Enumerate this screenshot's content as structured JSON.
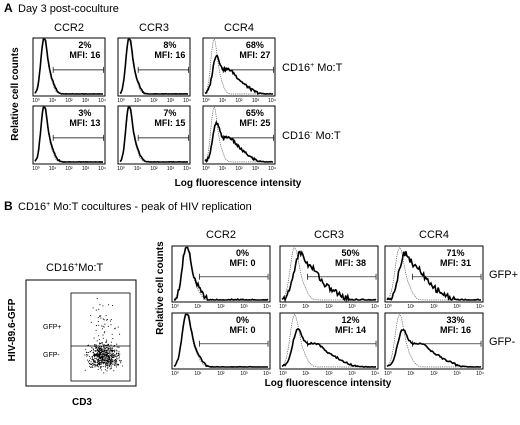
{
  "figure": {
    "panels": [
      {
        "id": "A",
        "letter": "A",
        "title": "Day 3 post-coculture",
        "ylabel": "Relative cell counts",
        "xlabel": "Log fluorescence intensity",
        "columns": [
          "CCR2",
          "CCR3",
          "CCR4"
        ],
        "row_labels": [
          {
            "main": "CD16",
            "sup": "+",
            "rest": " Mo:T"
          },
          {
            "main": "CD16",
            "sup": "-",
            "rest": " Mo:T"
          }
        ],
        "stats": [
          [
            {
              "pct": "2%",
              "mfi": "MFI: 16"
            },
            {
              "pct": "8%",
              "mfi": "MFI: 16"
            },
            {
              "pct": "68%",
              "mfi": "MFI: 27"
            }
          ],
          [
            {
              "pct": "3%",
              "mfi": "MFI: 13"
            },
            {
              "pct": "7%",
              "mfi": "MFI: 15"
            },
            {
              "pct": "65%",
              "mfi": "MFI: 25"
            }
          ]
        ]
      },
      {
        "id": "B",
        "letter": "B",
        "title": {
          "main": "CD16",
          "sup": "+",
          "rest": " Mo:T cocultures - peak of HIV replication"
        },
        "ylabel": "Relative cell counts",
        "xlabel": "Log fluorescence intensity",
        "columns": [
          "CCR2",
          "CCR3",
          "CCR4"
        ],
        "row_labels": [
          "GFP+",
          "GFP-"
        ],
        "stats": [
          [
            {
              "pct": "0%",
              "mfi": "MFI: 0"
            },
            {
              "pct": "50%",
              "mfi": "MFI: 38"
            },
            {
              "pct": "71%",
              "mfi": "MFI: 31"
            }
          ],
          [
            {
              "pct": "0%",
              "mfi": "MFI: 0"
            },
            {
              "pct": "12%",
              "mfi": "MFI: 14"
            },
            {
              "pct": "33%",
              "mfi": "MFI: 16"
            }
          ]
        ],
        "scatter": {
          "title": {
            "main": "CD16",
            "sup": "+",
            "rest": "Mo:T"
          },
          "xlabel": "CD3",
          "ylabel": "HIV-89.6-GFP",
          "gates": [
            "GFP+",
            "GFP-"
          ]
        }
      }
    ],
    "x_tick_labels": [
      "10⁰",
      "10¹",
      "10²",
      "10³",
      "10⁴"
    ]
  },
  "chart_data": [
    {
      "type": "histogram",
      "title": "Day 3 post-coculture",
      "xlabel": "Log fluorescence intensity",
      "ylabel": "Relative cell counts",
      "x_scale": "log",
      "xlim": [
        1,
        10000
      ],
      "columns": [
        "CCR2",
        "CCR3",
        "CCR4"
      ],
      "rows": [
        "CD16+ Mo:T",
        "CD16- Mo:T"
      ],
      "percent_positive": [
        [
          2,
          8,
          68
        ],
        [
          3,
          7,
          65
        ]
      ],
      "mfi": [
        [
          16,
          16,
          27
        ],
        [
          13,
          15,
          25
        ]
      ],
      "series": [
        {
          "name": "",
          "style": "thick solid"
        },
        {
          "name": "",
          "style": "thin dotted"
        }
      ]
    },
    {
      "type": "histogram",
      "title": "CD16+ Mo:T cocultures - peak of HIV replication",
      "xlabel": "Log fluorescence intensity",
      "ylabel": "Relative cell counts",
      "x_scale": "log",
      "xlim": [
        1,
        10000
      ],
      "columns": [
        "CCR2",
        "CCR3",
        "CCR4"
      ],
      "rows": [
        "GFP+",
        "GFP-"
      ],
      "percent_positive": [
        [
          0,
          50,
          71
        ],
        [
          0,
          12,
          33
        ]
      ],
      "mfi": [
        [
          0,
          38,
          31
        ],
        [
          0,
          14,
          16
        ]
      ]
    },
    {
      "type": "scatter",
      "title": "CD16+Mo:T",
      "xlabel": "CD3",
      "ylabel": "HIV-89.6-GFP",
      "gates": [
        "GFP+",
        "GFP-"
      ]
    }
  ]
}
